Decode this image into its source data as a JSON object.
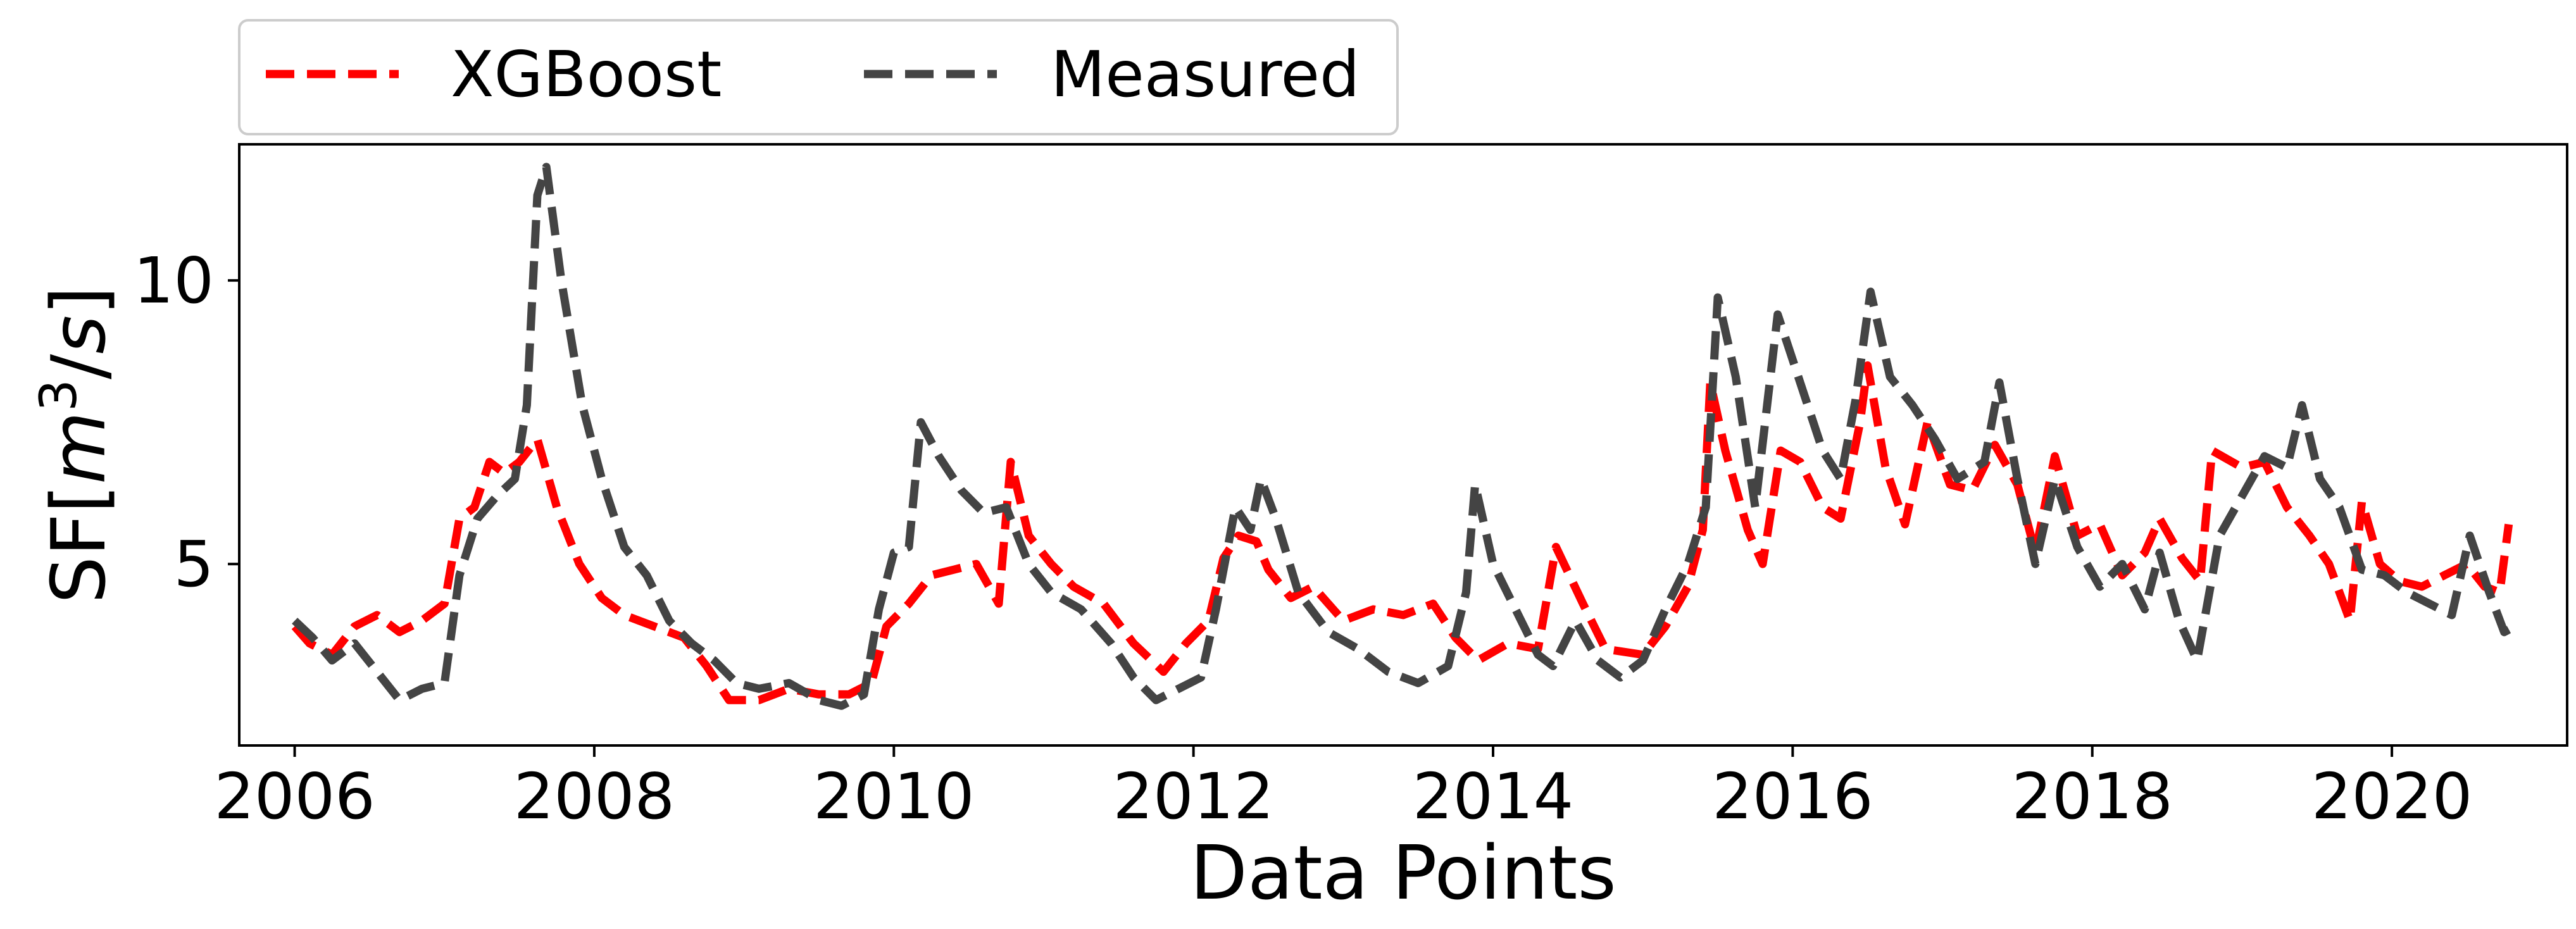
{
  "chart_data": {
    "type": "line",
    "xlabel": "Data Points",
    "ylabel": "SF[m3/s]",
    "ylabel_parts": {
      "base": "SF[",
      "var": "m",
      "sup": "3",
      "slash": "/",
      "var2": "s",
      "end": "]"
    },
    "xlim": [
      2005.63,
      2021.17
    ],
    "ylim": [
      1.8,
      12.4
    ],
    "xticks": [
      2006,
      2008,
      2010,
      2012,
      2014,
      2016,
      2018,
      2020
    ],
    "xtick_labels": [
      "2006",
      "2008",
      "2010",
      "2012",
      "2014",
      "2016",
      "2018",
      "2020"
    ],
    "yticks": [
      5,
      10
    ],
    "ytick_labels": [
      "5",
      "10"
    ],
    "grid": false,
    "legend": {
      "position": "above-top-left",
      "entries": [
        "XGBoost",
        "Measured"
      ]
    },
    "series": [
      {
        "name": "XGBoost",
        "color": "#ff0000",
        "dash": "dashed",
        "points": [
          [
            2006.0,
            3.9
          ],
          [
            2006.1,
            3.6
          ],
          [
            2006.25,
            3.4
          ],
          [
            2006.4,
            3.9
          ],
          [
            2006.55,
            4.1
          ],
          [
            2006.7,
            3.8
          ],
          [
            2006.85,
            4.0
          ],
          [
            2007.0,
            4.3
          ],
          [
            2007.1,
            5.8
          ],
          [
            2007.2,
            6.0
          ],
          [
            2007.3,
            6.8
          ],
          [
            2007.4,
            6.6
          ],
          [
            2007.5,
            6.8
          ],
          [
            2007.62,
            7.2
          ],
          [
            2007.75,
            6.0
          ],
          [
            2007.9,
            5.0
          ],
          [
            2008.05,
            4.4
          ],
          [
            2008.2,
            4.1
          ],
          [
            2008.4,
            3.9
          ],
          [
            2008.6,
            3.7
          ],
          [
            2008.75,
            3.2
          ],
          [
            2008.9,
            2.6
          ],
          [
            2009.1,
            2.6
          ],
          [
            2009.3,
            2.8
          ],
          [
            2009.5,
            2.7
          ],
          [
            2009.7,
            2.7
          ],
          [
            2009.85,
            2.9
          ],
          [
            2009.95,
            3.9
          ],
          [
            2010.1,
            4.3
          ],
          [
            2010.25,
            4.8
          ],
          [
            2010.4,
            4.9
          ],
          [
            2010.55,
            5.0
          ],
          [
            2010.7,
            4.3
          ],
          [
            2010.78,
            6.8
          ],
          [
            2010.9,
            5.5
          ],
          [
            2011.05,
            5.0
          ],
          [
            2011.2,
            4.6
          ],
          [
            2011.4,
            4.3
          ],
          [
            2011.6,
            3.6
          ],
          [
            2011.8,
            3.1
          ],
          [
            2011.95,
            3.6
          ],
          [
            2012.1,
            4.0
          ],
          [
            2012.2,
            5.1
          ],
          [
            2012.3,
            5.5
          ],
          [
            2012.42,
            5.4
          ],
          [
            2012.5,
            4.9
          ],
          [
            2012.65,
            4.4
          ],
          [
            2012.8,
            4.6
          ],
          [
            2013.0,
            4.0
          ],
          [
            2013.2,
            4.2
          ],
          [
            2013.4,
            4.1
          ],
          [
            2013.6,
            4.3
          ],
          [
            2013.75,
            3.7
          ],
          [
            2013.9,
            3.3
          ],
          [
            2014.1,
            3.6
          ],
          [
            2014.3,
            3.5
          ],
          [
            2014.42,
            5.3
          ],
          [
            2014.6,
            4.3
          ],
          [
            2014.75,
            3.5
          ],
          [
            2015.0,
            3.4
          ],
          [
            2015.15,
            3.9
          ],
          [
            2015.3,
            4.6
          ],
          [
            2015.4,
            5.6
          ],
          [
            2015.45,
            8.2
          ],
          [
            2015.55,
            7.0
          ],
          [
            2015.7,
            5.6
          ],
          [
            2015.8,
            5.0
          ],
          [
            2015.92,
            7.0
          ],
          [
            2016.05,
            6.8
          ],
          [
            2016.2,
            6.0
          ],
          [
            2016.32,
            5.8
          ],
          [
            2016.45,
            7.5
          ],
          [
            2016.5,
            8.5
          ],
          [
            2016.62,
            6.7
          ],
          [
            2016.75,
            5.7
          ],
          [
            2016.9,
            7.5
          ],
          [
            2017.05,
            6.4
          ],
          [
            2017.2,
            6.3
          ],
          [
            2017.35,
            7.1
          ],
          [
            2017.5,
            6.4
          ],
          [
            2017.62,
            5.2
          ],
          [
            2017.75,
            6.9
          ],
          [
            2017.9,
            5.5
          ],
          [
            2018.05,
            5.7
          ],
          [
            2018.2,
            4.8
          ],
          [
            2018.35,
            5.2
          ],
          [
            2018.45,
            5.8
          ],
          [
            2018.6,
            5.1
          ],
          [
            2018.72,
            4.7
          ],
          [
            2018.8,
            7.0
          ],
          [
            2019.0,
            6.7
          ],
          [
            2019.15,
            6.8
          ],
          [
            2019.3,
            6.0
          ],
          [
            2019.45,
            5.5
          ],
          [
            2019.58,
            5.0
          ],
          [
            2019.72,
            4.0
          ],
          [
            2019.8,
            6.1
          ],
          [
            2019.92,
            5.0
          ],
          [
            2020.05,
            4.7
          ],
          [
            2020.2,
            4.6
          ],
          [
            2020.35,
            4.8
          ],
          [
            2020.5,
            5.0
          ],
          [
            2020.62,
            4.6
          ],
          [
            2020.72,
            4.5
          ],
          [
            2020.78,
            5.7
          ]
        ]
      },
      {
        "name": "Measured",
        "color": "#444444",
        "dash": "dashed",
        "points": [
          [
            2006.0,
            4.0
          ],
          [
            2006.12,
            3.7
          ],
          [
            2006.25,
            3.3
          ],
          [
            2006.4,
            3.6
          ],
          [
            2006.55,
            3.1
          ],
          [
            2006.7,
            2.6
          ],
          [
            2006.85,
            2.8
          ],
          [
            2007.0,
            2.9
          ],
          [
            2007.1,
            4.8
          ],
          [
            2007.22,
            5.8
          ],
          [
            2007.35,
            6.2
          ],
          [
            2007.47,
            6.5
          ],
          [
            2007.55,
            7.8
          ],
          [
            2007.62,
            11.5
          ],
          [
            2007.68,
            12.0
          ],
          [
            2007.78,
            10.0
          ],
          [
            2007.92,
            7.8
          ],
          [
            2008.05,
            6.5
          ],
          [
            2008.2,
            5.3
          ],
          [
            2008.35,
            4.8
          ],
          [
            2008.5,
            4.0
          ],
          [
            2008.65,
            3.6
          ],
          [
            2008.8,
            3.3
          ],
          [
            2008.95,
            2.9
          ],
          [
            2009.1,
            2.8
          ],
          [
            2009.3,
            2.9
          ],
          [
            2009.5,
            2.6
          ],
          [
            2009.65,
            2.5
          ],
          [
            2009.8,
            2.7
          ],
          [
            2009.9,
            4.2
          ],
          [
            2010.0,
            5.2
          ],
          [
            2010.1,
            5.3
          ],
          [
            2010.18,
            7.5
          ],
          [
            2010.3,
            6.9
          ],
          [
            2010.45,
            6.3
          ],
          [
            2010.6,
            5.9
          ],
          [
            2010.75,
            6.0
          ],
          [
            2010.9,
            5.0
          ],
          [
            2011.05,
            4.5
          ],
          [
            2011.25,
            4.2
          ],
          [
            2011.45,
            3.6
          ],
          [
            2011.6,
            3.0
          ],
          [
            2011.75,
            2.6
          ],
          [
            2011.9,
            2.8
          ],
          [
            2012.05,
            3.0
          ],
          [
            2012.15,
            4.2
          ],
          [
            2012.28,
            6.0
          ],
          [
            2012.38,
            5.6
          ],
          [
            2012.45,
            6.5
          ],
          [
            2012.55,
            5.8
          ],
          [
            2012.7,
            4.5
          ],
          [
            2012.9,
            3.8
          ],
          [
            2013.1,
            3.5
          ],
          [
            2013.3,
            3.1
          ],
          [
            2013.5,
            2.9
          ],
          [
            2013.7,
            3.2
          ],
          [
            2013.82,
            4.5
          ],
          [
            2013.88,
            6.4
          ],
          [
            2014.0,
            5.0
          ],
          [
            2014.15,
            4.2
          ],
          [
            2014.3,
            3.4
          ],
          [
            2014.4,
            3.2
          ],
          [
            2014.55,
            4.0
          ],
          [
            2014.7,
            3.3
          ],
          [
            2014.85,
            3.0
          ],
          [
            2015.0,
            3.3
          ],
          [
            2015.15,
            4.2
          ],
          [
            2015.3,
            5.0
          ],
          [
            2015.42,
            6.0
          ],
          [
            2015.5,
            9.7
          ],
          [
            2015.62,
            8.3
          ],
          [
            2015.75,
            6.0
          ],
          [
            2015.9,
            9.4
          ],
          [
            2016.05,
            8.2
          ],
          [
            2016.2,
            7.0
          ],
          [
            2016.32,
            6.5
          ],
          [
            2016.42,
            7.9
          ],
          [
            2016.52,
            9.8
          ],
          [
            2016.65,
            8.3
          ],
          [
            2016.8,
            7.8
          ],
          [
            2016.95,
            7.2
          ],
          [
            2017.1,
            6.5
          ],
          [
            2017.28,
            6.8
          ],
          [
            2017.38,
            8.2
          ],
          [
            2017.5,
            6.5
          ],
          [
            2017.62,
            5.0
          ],
          [
            2017.75,
            6.5
          ],
          [
            2017.9,
            5.3
          ],
          [
            2018.05,
            4.6
          ],
          [
            2018.2,
            5.0
          ],
          [
            2018.35,
            4.2
          ],
          [
            2018.45,
            5.2
          ],
          [
            2018.58,
            4.0
          ],
          [
            2018.7,
            3.3
          ],
          [
            2018.85,
            5.5
          ],
          [
            2019.0,
            6.2
          ],
          [
            2019.15,
            6.9
          ],
          [
            2019.3,
            6.7
          ],
          [
            2019.4,
            7.8
          ],
          [
            2019.52,
            6.5
          ],
          [
            2019.65,
            6.0
          ],
          [
            2019.8,
            4.9
          ],
          [
            2019.95,
            4.8
          ],
          [
            2020.1,
            4.5
          ],
          [
            2020.25,
            4.3
          ],
          [
            2020.4,
            4.1
          ],
          [
            2020.52,
            5.5
          ],
          [
            2020.65,
            4.5
          ],
          [
            2020.75,
            3.8
          ],
          [
            2020.82,
            3.9
          ]
        ]
      }
    ]
  }
}
